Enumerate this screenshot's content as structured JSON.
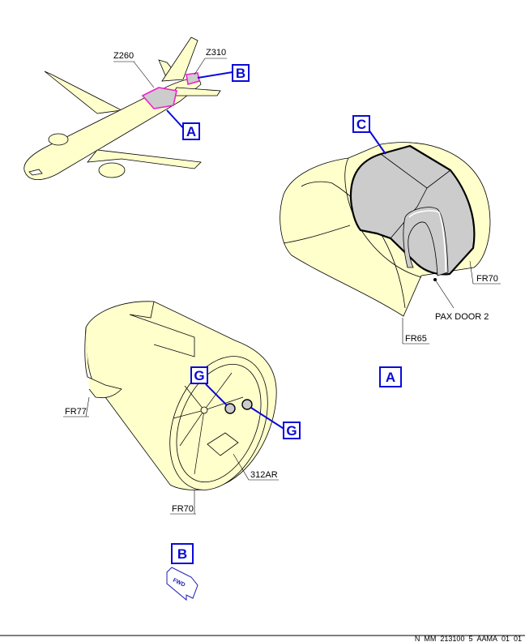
{
  "overview": {
    "zones": {
      "left": "Z260",
      "right": "Z310"
    },
    "callouts": {
      "a": "A",
      "b": "B"
    }
  },
  "view_a": {
    "callout": "A",
    "detail_callout": "C",
    "labels": {
      "fr70": "FR70",
      "pax_door": "PAX DOOR 2",
      "fr65": "FR65"
    }
  },
  "view_b": {
    "callout": "B",
    "detail_callout_top": "G",
    "detail_callout_right": "G",
    "labels": {
      "fr77": "FR77",
      "panel": "312AR",
      "fr70": "FR70"
    },
    "fwd_symbol": "FWD"
  },
  "footer": {
    "reference": "N_MM_213100_5_AAMA_01_01"
  },
  "colors": {
    "fill": "#ffffcc",
    "callout": "#0a0ad8",
    "highlight": "#ee22cc",
    "panel": "#cccccc"
  }
}
